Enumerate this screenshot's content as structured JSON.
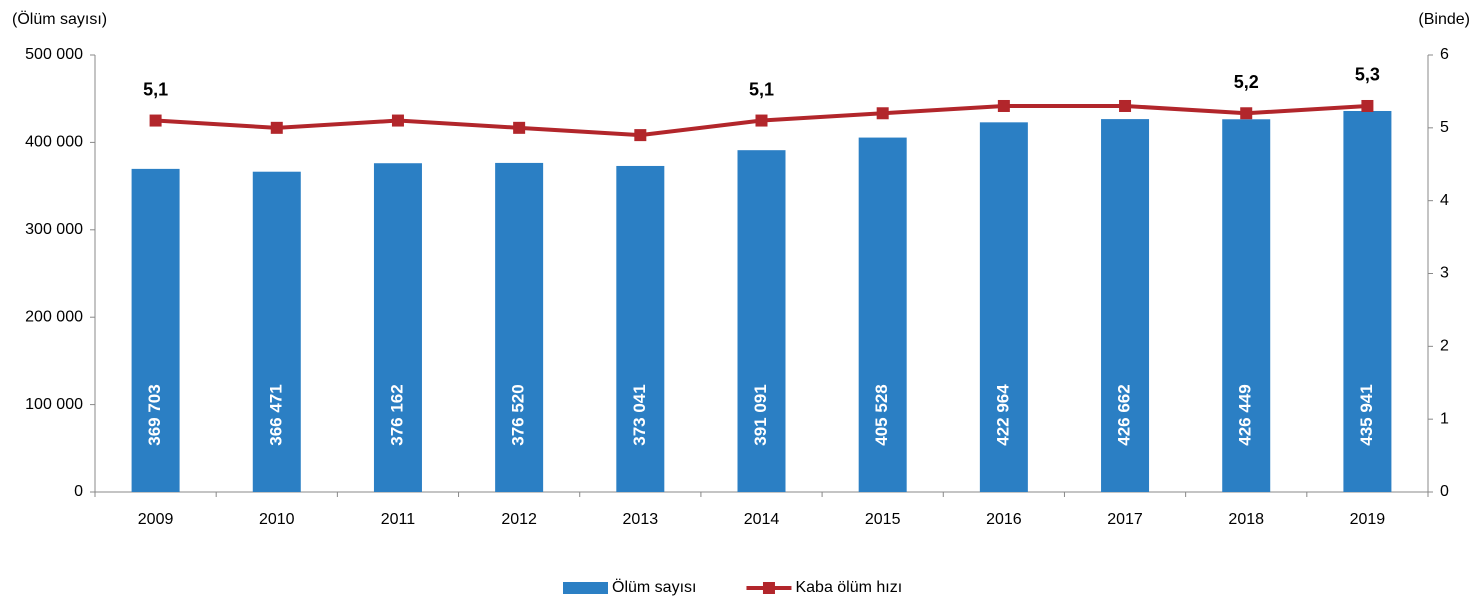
{
  "chart_data": {
    "type": "bar_line",
    "y_label": "(Ölüm sayısı)",
    "y2_label": "(Binde)",
    "categories": [
      "2009",
      "2010",
      "2011",
      "2012",
      "2013",
      "2014",
      "2015",
      "2016",
      "2017",
      "2018",
      "2019"
    ],
    "series": [
      {
        "name": "Ölüm sayısı",
        "type": "bar",
        "color": "#2b7fc4",
        "values": [
          369703,
          366471,
          376162,
          376520,
          373041,
          391091,
          405528,
          422964,
          426662,
          426449,
          435941
        ],
        "value_labels": [
          "369 703",
          "366 471",
          "376 162",
          "376 520",
          "373 041",
          "391 091",
          "405 528",
          "422 964",
          "426 662",
          "426 449",
          "435 941"
        ]
      },
      {
        "name": "Kaba ölüm hızı",
        "type": "line",
        "axis": "y2",
        "color": "#b2262b",
        "values": [
          5.1,
          5.0,
          5.1,
          5.0,
          4.9,
          5.1,
          5.2,
          5.3,
          5.3,
          5.2,
          5.3
        ],
        "value_labels": [
          "5,1",
          null,
          null,
          null,
          null,
          "5,1",
          null,
          null,
          null,
          "5,2",
          "5,3"
        ]
      }
    ],
    "ylim": [
      0,
      500000
    ],
    "yticks": [
      0,
      {
        "value": 100000,
        "label": "100 000"
      },
      {
        "value": 200000,
        "label": "200 000"
      },
      {
        "value": 300000,
        "label": "300 000"
      },
      {
        "value": 400000,
        "label": "400 000"
      },
      {
        "value": 500000,
        "label": "500 000"
      }
    ],
    "y2lim": [
      0,
      6
    ],
    "y2ticks": [
      0,
      1,
      2,
      3,
      4,
      5,
      6
    ],
    "legend": "bottom"
  }
}
